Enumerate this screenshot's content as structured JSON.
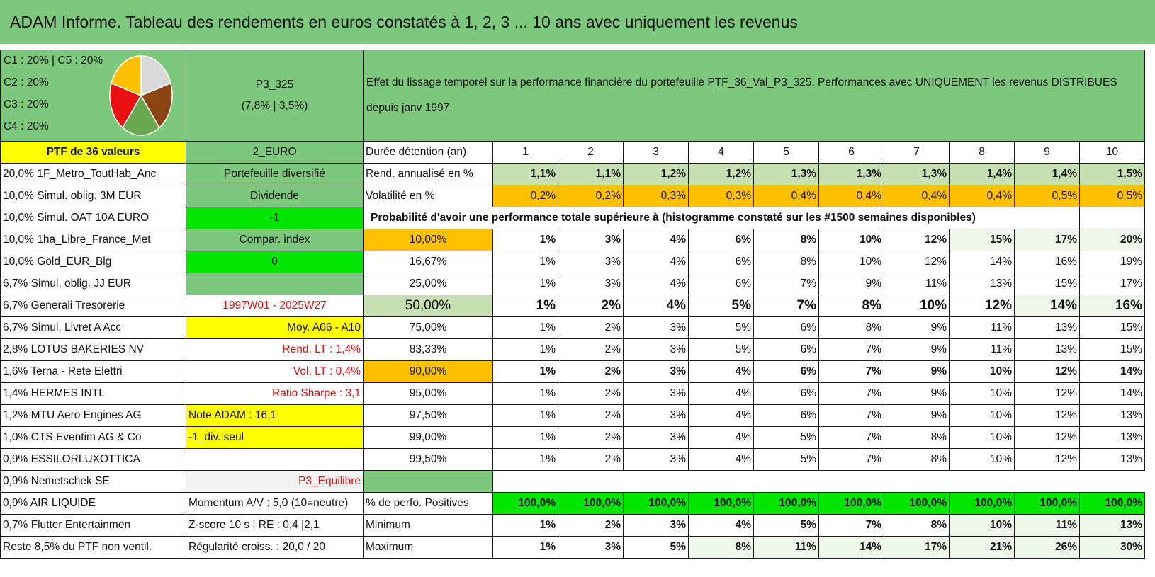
{
  "title": "ADAM Informe. Tableau des rendements en euros constatés à 1, 2, 3 ... 10 ans avec uniquement les revenus",
  "allocation": {
    "lines": [
      "C1 : 20% | C5 : 20%",
      "C2 : 20%",
      "C3 : 20%",
      "C4 : 20%"
    ],
    "pie": [
      {
        "name": "C1",
        "percent": 20,
        "color": "#d9d9d9"
      },
      {
        "name": "C2",
        "percent": 20,
        "color": "#8b4513"
      },
      {
        "name": "C3",
        "percent": 20,
        "color": "#6aa84f"
      },
      {
        "name": "C4",
        "percent": 20,
        "color": "#e81010"
      },
      {
        "name": "C5",
        "percent": 20,
        "color": "#ffc000"
      }
    ]
  },
  "portfolio": {
    "name": "P3_325",
    "stats": "(7,8% | 3,5%)"
  },
  "description": "Effet du lissage temporel sur la performance financière du portefeuille PTF_36_Val_P3_325. Performances avec UNIQUEMENT les revenus DISTRIBUES depuis janv 1997.",
  "header": {
    "ptf": "PTF de 36 valeurs",
    "currency": "2_EURO",
    "duration_label": "Durée détention (an)",
    "years": [
      "1",
      "2",
      "3",
      "4",
      "5",
      "6",
      "7",
      "8",
      "9",
      "10"
    ]
  },
  "holdings": [
    "20,0% 1F_Metro_ToutHab_Anc",
    "10,0% Simul. oblig. 3M EUR",
    "10,0% Simul. OAT 10A EURO",
    "10,0% 1ha_Libre_France_Met",
    "10,0% Gold_EUR_Blg",
    "6,7% Simul. oblig. JJ EUR",
    "6,7% Generali Tresorerie",
    "6,7% Simul. Livret A Acc",
    "2,8% LOTUS BAKERIES NV",
    "1,6% Terna - Rete Elettri",
    "1,4% HERMES INTL",
    "1,2% MTU Aero Engines AG",
    "1,0% CTS Eventim AG & Co",
    "0,9% ESSILORLUXOTTICA",
    "0,9% Nemetschek SE",
    "0,9% AIR LIQUIDE",
    "0,7% Flutter Entertainmen",
    "Reste 8,5% du PTF non ventil."
  ],
  "info": [
    "Portefeuille diversifié",
    "Dividende",
    "-1",
    "Compar. index",
    "0",
    "",
    "1997W01 - 2025W27",
    "Moy. A06 - A10",
    "Rend. LT : 1,4%",
    "Vol. LT : 0,4%",
    "Ratio Sharpe : 3,1",
    "Note ADAM : 16,1",
    "-1_div. seul",
    "",
    "P3_Equilibre",
    "Momentum A/V : 5,0 (10=neutre)",
    "Z-score 10 s | RE : 0,4 |2,1",
    "Régularité croiss. : 20,0 / 20"
  ],
  "rend": {
    "label": "Rend. annualisé en %",
    "values": [
      "1,1%",
      "1,1%",
      "1,2%",
      "1,2%",
      "1,3%",
      "1,3%",
      "1,3%",
      "1,4%",
      "1,4%",
      "1,5%"
    ]
  },
  "vol": {
    "label": "Volatilité en %",
    "values": [
      "0,2%",
      "0,2%",
      "0,3%",
      "0,3%",
      "0,4%",
      "0,4%",
      "0,4%",
      "0,4%",
      "0,5%",
      "0,5%"
    ]
  },
  "prob_header": "Probabilité d'avoir une performance totale supérieure à (histogramme constaté sur les #1500 semaines disponibles)",
  "prob_rows": [
    {
      "pct": "10,00%",
      "values": [
        "1%",
        "3%",
        "4%",
        "6%",
        "8%",
        "10%",
        "12%",
        "15%",
        "17%",
        "20%"
      ]
    },
    {
      "pct": "16,67%",
      "values": [
        "1%",
        "3%",
        "4%",
        "6%",
        "8%",
        "10%",
        "12%",
        "14%",
        "16%",
        "19%"
      ]
    },
    {
      "pct": "25,00%",
      "values": [
        "1%",
        "3%",
        "4%",
        "6%",
        "7%",
        "9%",
        "11%",
        "13%",
        "15%",
        "17%"
      ]
    },
    {
      "pct": "50,00%",
      "values": [
        "1%",
        "2%",
        "4%",
        "5%",
        "7%",
        "8%",
        "10%",
        "12%",
        "14%",
        "16%"
      ]
    },
    {
      "pct": "75,00%",
      "values": [
        "1%",
        "2%",
        "3%",
        "5%",
        "6%",
        "8%",
        "9%",
        "11%",
        "13%",
        "15%"
      ]
    },
    {
      "pct": "83,33%",
      "values": [
        "1%",
        "2%",
        "3%",
        "5%",
        "6%",
        "7%",
        "9%",
        "11%",
        "13%",
        "15%"
      ]
    },
    {
      "pct": "90,00%",
      "values": [
        "1%",
        "2%",
        "3%",
        "4%",
        "6%",
        "7%",
        "9%",
        "10%",
        "12%",
        "14%"
      ]
    },
    {
      "pct": "95,00%",
      "values": [
        "1%",
        "2%",
        "3%",
        "4%",
        "6%",
        "7%",
        "9%",
        "10%",
        "12%",
        "14%"
      ]
    },
    {
      "pct": "97,50%",
      "values": [
        "1%",
        "2%",
        "3%",
        "4%",
        "6%",
        "7%",
        "9%",
        "10%",
        "12%",
        "13%"
      ]
    },
    {
      "pct": "99,00%",
      "values": [
        "1%",
        "2%",
        "3%",
        "4%",
        "5%",
        "7%",
        "8%",
        "10%",
        "12%",
        "13%"
      ]
    },
    {
      "pct": "99,50%",
      "values": [
        "1%",
        "2%",
        "3%",
        "4%",
        "5%",
        "7%",
        "8%",
        "10%",
        "12%",
        "13%"
      ]
    }
  ],
  "positives": {
    "label": "% de perfo. Positives",
    "values": [
      "100,0%",
      "100,0%",
      "100,0%",
      "100,0%",
      "100,0%",
      "100,0%",
      "100,0%",
      "100,0%",
      "100,0%",
      "100,0%"
    ]
  },
  "minimum": {
    "label": "Minimum",
    "values": [
      "1%",
      "2%",
      "3%",
      "4%",
      "5%",
      "7%",
      "8%",
      "10%",
      "11%",
      "13%"
    ]
  },
  "maximum": {
    "label": "Maximum",
    "values": [
      "1%",
      "3%",
      "5%",
      "8%",
      "11%",
      "14%",
      "17%",
      "21%",
      "26%",
      "30%"
    ]
  }
}
